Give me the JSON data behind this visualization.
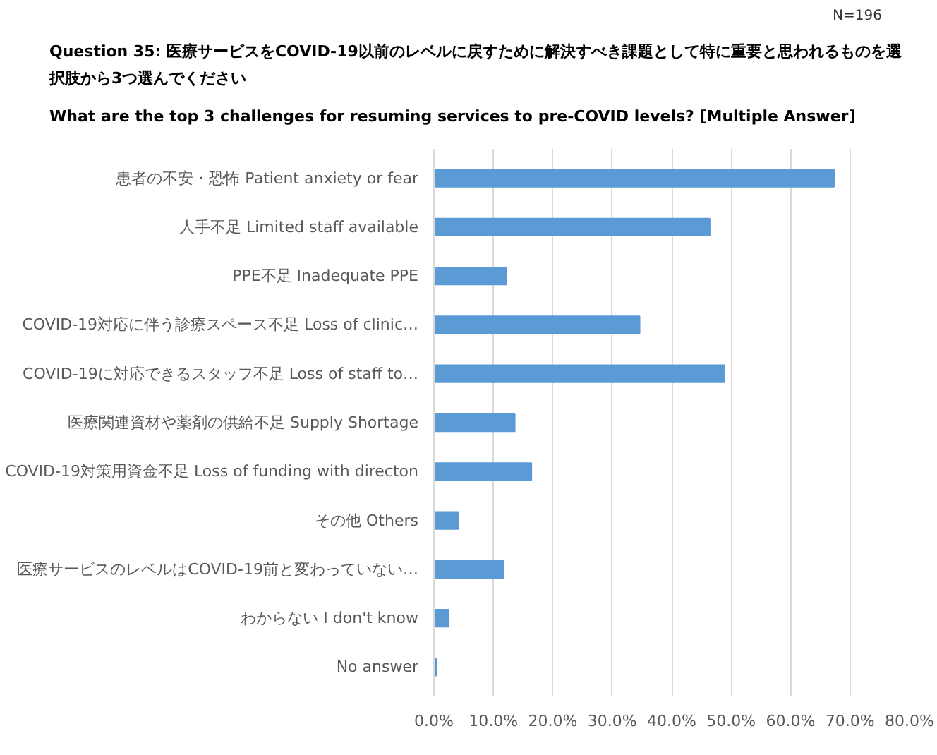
{
  "chart_data": {
    "type": "bar",
    "orientation": "horizontal",
    "title": "Question 35: 医療サービスをCOVID-19以前のレベルに戻すために解決すべき課題として特に重要と思われるものを選択肢から3つ選んでください",
    "subtitle": "What are the top 3 challenges for resuming services to pre-COVID levels? [Multiple Answer]",
    "annotations": [
      "N=196"
    ],
    "categories": [
      "患者の不安・恐怖 Patient anxiety or fear",
      "人手不足 Limited staff available",
      "PPE不足 Inadequate PPE",
      "COVID-19対応に伴う診療スペース不足 Loss of clinic…",
      "COVID-19に対応できるスタッフ不足 Loss of staff to…",
      "医療関連資材や薬剤の供給不足 Supply Shortage",
      "COVID-19対策用資金不足 Loss of funding with directon",
      "その他 Others",
      "医療サービスのレベルはCOVID-19前と変わっていない…",
      "わからない I don't know",
      "No answer"
    ],
    "values": [
      67.3,
      46.4,
      12.2,
      34.6,
      48.9,
      13.6,
      16.4,
      4.1,
      11.7,
      2.5,
      0.4
    ],
    "color": "#5b9bd5",
    "xlim": [
      0,
      80
    ],
    "xticks": [
      {
        "value": 0,
        "label": "0.0%"
      },
      {
        "value": 10,
        "label": "10.0%"
      },
      {
        "value": 20,
        "label": "20.0%"
      },
      {
        "value": 30,
        "label": "30.0%"
      },
      {
        "value": 40,
        "label": "40.0%"
      },
      {
        "value": 50,
        "label": "50.0%"
      },
      {
        "value": 60,
        "label": "60.0%"
      },
      {
        "value": 70,
        "label": "70.0%"
      },
      {
        "value": 80,
        "label": "80.0%"
      }
    ],
    "grid": "x"
  }
}
